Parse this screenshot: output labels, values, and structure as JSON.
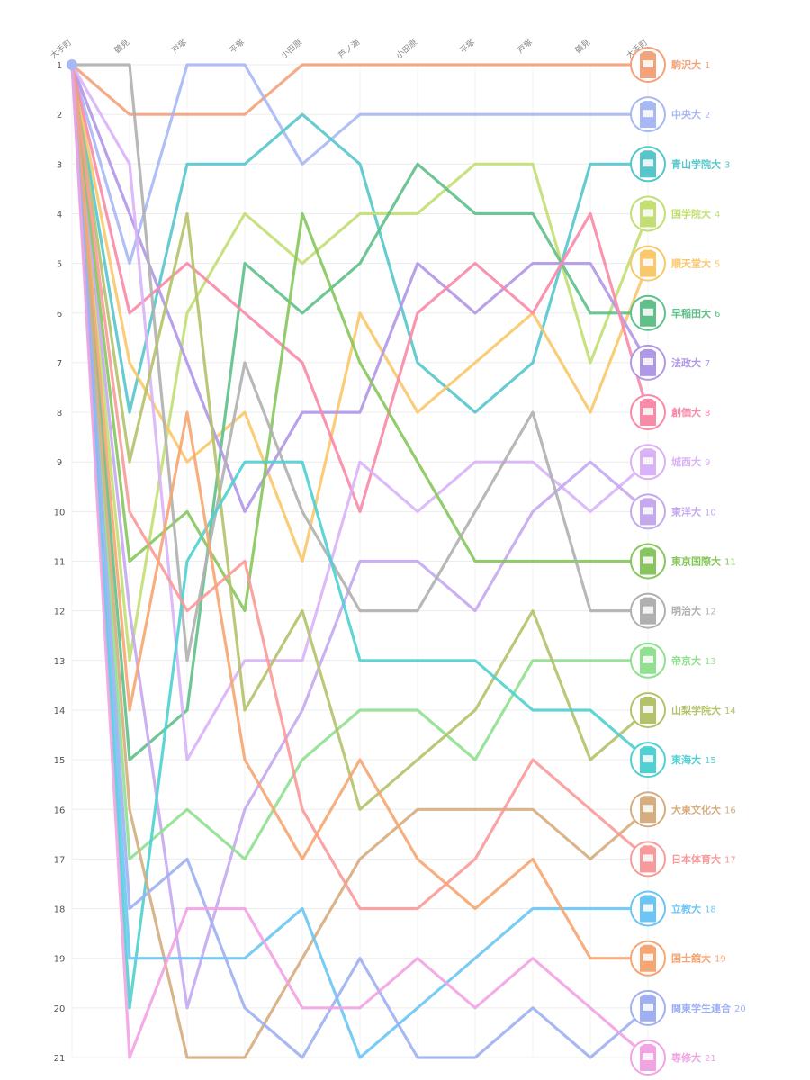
{
  "chart_data": {
    "type": "line",
    "x": [
      "大手町",
      "鶴見",
      "戸塚",
      "平塚",
      "小田原",
      "芦ノ湖",
      "小田原",
      "平塚",
      "戸塚",
      "鶴見",
      "大手町"
    ],
    "y_ticks": [
      1,
      2,
      3,
      4,
      5,
      6,
      7,
      8,
      9,
      10,
      11,
      12,
      13,
      14,
      15,
      16,
      17,
      18,
      19,
      20,
      21
    ],
    "ylim": [
      1,
      21
    ],
    "y_reversed": true,
    "grid": true,
    "series": [
      {
        "name": "駒沢大",
        "color": "#f4a27a",
        "values": [
          1,
          2,
          2,
          2,
          1,
          1,
          1,
          1,
          1,
          1,
          1
        ]
      },
      {
        "name": "中央大",
        "color": "#a7b8f5",
        "values": [
          1,
          5,
          1,
          1,
          3,
          2,
          2,
          2,
          2,
          2,
          2
        ]
      },
      {
        "name": "青山学院大",
        "color": "#56c6cc",
        "values": [
          1,
          8,
          3,
          3,
          2,
          3,
          7,
          8,
          7,
          3,
          3
        ]
      },
      {
        "name": "国学院大",
        "color": "#c3df73",
        "values": [
          1,
          13,
          6,
          4,
          5,
          4,
          4,
          3,
          3,
          7,
          4
        ]
      },
      {
        "name": "順天堂大",
        "color": "#f9c86b",
        "values": [
          1,
          7,
          9,
          8,
          11,
          6,
          8,
          7,
          6,
          8,
          5
        ]
      },
      {
        "name": "早稲田大",
        "color": "#5fc08a",
        "values": [
          1,
          15,
          14,
          5,
          6,
          5,
          3,
          4,
          4,
          6,
          6
        ]
      },
      {
        "name": "法政大",
        "color": "#b197e8",
        "values": [
          1,
          4,
          7,
          10,
          8,
          8,
          5,
          6,
          5,
          5,
          7
        ]
      },
      {
        "name": "創価大",
        "color": "#f98aa8",
        "values": [
          1,
          6,
          5,
          6,
          7,
          10,
          6,
          5,
          6,
          4,
          8
        ]
      },
      {
        "name": "城西大",
        "color": "#d9b2f7",
        "values": [
          1,
          3,
          15,
          13,
          13,
          9,
          10,
          9,
          9,
          10,
          9
        ]
      },
      {
        "name": "東洋大",
        "color": "#c4a9ef",
        "values": [
          1,
          12,
          20,
          16,
          14,
          11,
          11,
          12,
          10,
          9,
          10
        ]
      },
      {
        "name": "東京国際大",
        "color": "#86c65c",
        "values": [
          1,
          11,
          10,
          12,
          4,
          7,
          9,
          11,
          11,
          11,
          11
        ]
      },
      {
        "name": "明治大",
        "color": "#b0b0b0",
        "values": [
          1,
          1,
          13,
          7,
          10,
          12,
          12,
          10,
          8,
          12,
          12
        ]
      },
      {
        "name": "帝京大",
        "color": "#8fe08f",
        "values": [
          1,
          17,
          16,
          17,
          15,
          14,
          14,
          15,
          13,
          13,
          13
        ]
      },
      {
        "name": "山梨学院大",
        "color": "#b5c26a",
        "values": [
          1,
          9,
          4,
          14,
          12,
          16,
          15,
          14,
          12,
          15,
          14
        ]
      },
      {
        "name": "東海大",
        "color": "#4fd0d2",
        "values": [
          1,
          20,
          11,
          9,
          9,
          13,
          13,
          13,
          14,
          14,
          15
        ]
      },
      {
        "name": "大東文化大",
        "color": "#d6ad7e",
        "values": [
          1,
          16,
          21,
          21,
          19,
          17,
          16,
          16,
          16,
          17,
          16
        ]
      },
      {
        "name": "日本体育大",
        "color": "#f99a9a",
        "values": [
          1,
          10,
          12,
          11,
          16,
          18,
          18,
          17,
          15,
          16,
          17
        ]
      },
      {
        "name": "立教大",
        "color": "#6cc6f4",
        "values": [
          1,
          19,
          19,
          19,
          18,
          21,
          20,
          19,
          18,
          18,
          18
        ]
      },
      {
        "name": "国士舘大",
        "color": "#f6a672",
        "values": [
          1,
          14,
          8,
          15,
          17,
          15,
          17,
          18,
          17,
          19,
          19
        ]
      },
      {
        "name": "関東学生連合",
        "color": "#9fb0f2",
        "values": [
          1,
          18,
          17,
          20,
          21,
          19,
          21,
          21,
          20,
          21,
          20
        ]
      },
      {
        "name": "専修大",
        "color": "#f2a3e3",
        "values": [
          1,
          21,
          18,
          18,
          20,
          20,
          19,
          20,
          19,
          20,
          21
        ]
      }
    ]
  }
}
